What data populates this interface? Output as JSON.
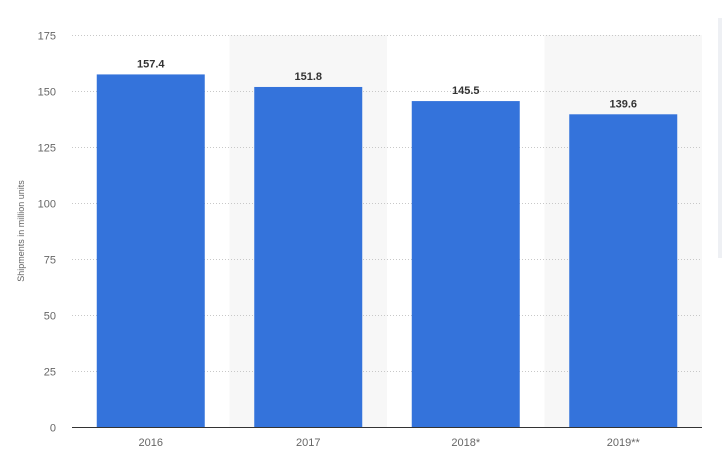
{
  "chart_data": {
    "type": "bar",
    "title": "",
    "xlabel": "",
    "ylabel": "Shipments in million units",
    "categories": [
      "2016",
      "2017",
      "2018*",
      "2019**"
    ],
    "values": [
      157.4,
      151.8,
      145.5,
      139.6
    ],
    "value_labels": [
      "157.4",
      "151.8",
      "145.5",
      "139.6"
    ],
    "ylim": [
      0,
      175
    ],
    "yticks": [
      "0",
      "25",
      "50",
      "75",
      "100",
      "125",
      "150",
      "175"
    ],
    "grid": true,
    "legend": "none",
    "colors": {
      "bar": "#3473db",
      "band": "#f7f7f7",
      "grid": "#c8c8c8"
    }
  }
}
